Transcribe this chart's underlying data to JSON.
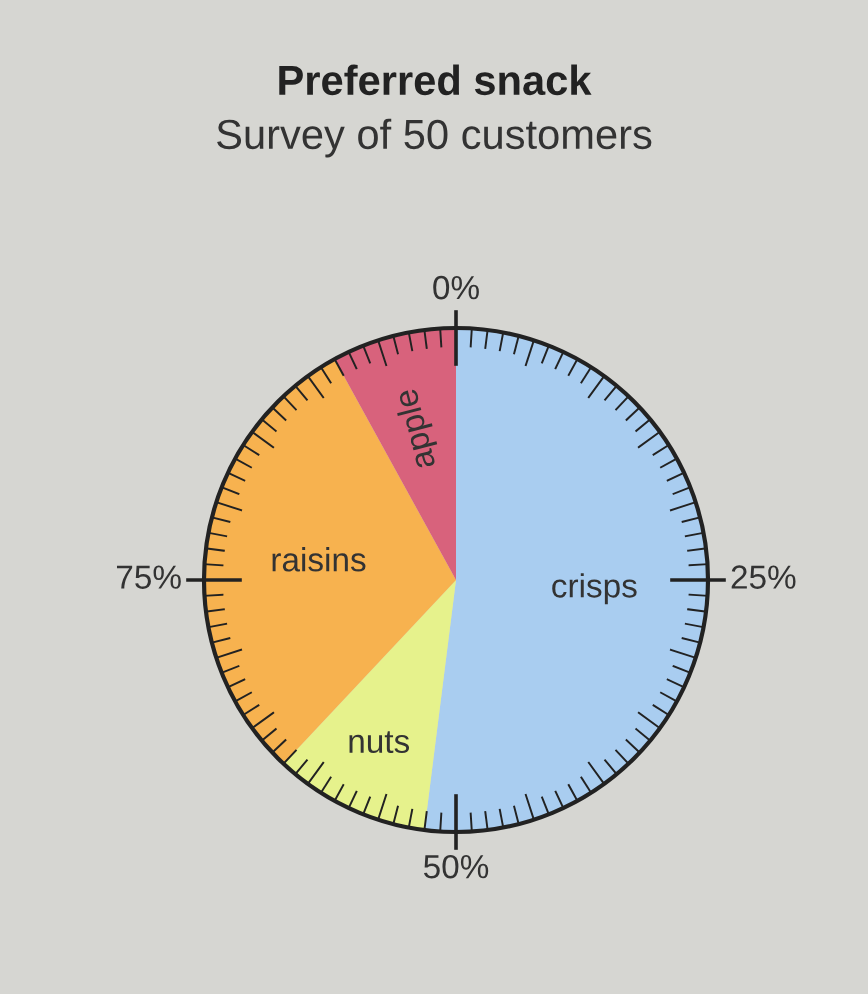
{
  "chart_data": {
    "type": "pie",
    "title": "Preferred snack",
    "subtitle": "Survey of 50 customers",
    "categories": [
      "crisps",
      "nuts",
      "raisins",
      "apple"
    ],
    "values": [
      52,
      10,
      30,
      8
    ],
    "colors": [
      "#a9cdf0",
      "#e6f28c",
      "#f7b24f",
      "#d8627c"
    ],
    "annotations": [
      "0%",
      "25%",
      "50%",
      "75%"
    ],
    "legend": false
  }
}
